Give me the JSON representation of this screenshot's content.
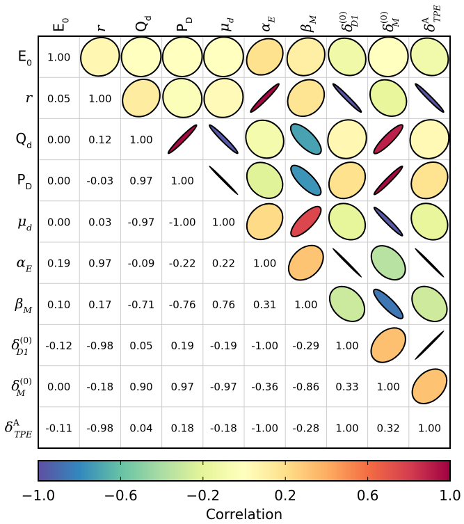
{
  "chart_data": {
    "type": "heatmap",
    "title": "",
    "variables": [
      {
        "base": "E",
        "sub": "0",
        "sup": "",
        "style": "sans"
      },
      {
        "base": "r",
        "sub": "",
        "sup": "",
        "style": "math"
      },
      {
        "base": "Q",
        "sub": "d",
        "sup": "",
        "style": "sans"
      },
      {
        "base": "P",
        "sub": "D",
        "sup": "",
        "style": "sans"
      },
      {
        "base": "μ",
        "sub": "d",
        "sup": "",
        "style": "math"
      },
      {
        "base": "α",
        "sub": "E",
        "sup": "",
        "style": "math"
      },
      {
        "base": "β",
        "sub": "M",
        "sup": "",
        "style": "math"
      },
      {
        "base": "δ",
        "sub": "D1",
        "sup": "(0)",
        "style": "math"
      },
      {
        "base": "δ",
        "sub": "M",
        "sup": "(0)",
        "style": "math"
      },
      {
        "base": "δ",
        "sub": "TPE",
        "sup": "A",
        "style": "math"
      }
    ],
    "matrix": [
      [
        1.0,
        0.05,
        0.0,
        0.0,
        -0.0,
        0.19,
        0.1,
        -0.12,
        0.0,
        -0.11
      ],
      [
        0.05,
        1.0,
        0.12,
        -0.03,
        0.03,
        0.97,
        0.17,
        -0.98,
        -0.18,
        -0.98
      ],
      [
        0.0,
        0.12,
        1.0,
        0.97,
        -0.97,
        -0.09,
        -0.71,
        0.05,
        0.9,
        0.04
      ],
      [
        0.0,
        -0.03,
        0.97,
        1.0,
        -1.0,
        -0.22,
        -0.76,
        0.19,
        0.97,
        0.18
      ],
      [
        -0.0,
        0.03,
        -0.97,
        -1.0,
        1.0,
        0.22,
        0.76,
        -0.19,
        -0.97,
        -0.18
      ],
      [
        0.19,
        0.97,
        -0.09,
        -0.22,
        0.22,
        1.0,
        0.31,
        -1.0,
        -0.36,
        -1.0
      ],
      [
        0.1,
        0.17,
        -0.71,
        -0.76,
        0.76,
        0.31,
        1.0,
        -0.29,
        -0.86,
        -0.28
      ],
      [
        -0.12,
        -0.98,
        0.05,
        0.19,
        -0.19,
        -1.0,
        -0.29,
        1.0,
        0.33,
        1.0
      ],
      [
        0.0,
        -0.18,
        0.9,
        0.97,
        -0.97,
        -0.36,
        -0.86,
        0.33,
        1.0,
        0.32
      ],
      [
        -0.11,
        -0.98,
        0.04,
        0.18,
        -0.18,
        -1.0,
        -0.28,
        1.0,
        0.32,
        1.0
      ]
    ],
    "lower_triangle": "numeric values",
    "upper_triangle": "ellipses colored by correlation",
    "colormap": "Spectral_r",
    "colorbar": {
      "label": "Correlation",
      "range": [
        -1.0,
        1.0
      ],
      "ticks": [
        "−1.0",
        "−0.6",
        "−0.2",
        "0.2",
        "0.6",
        "1.0"
      ],
      "tick_values": [
        -1.0,
        -0.6,
        -0.2,
        0.2,
        0.6,
        1.0
      ],
      "placement": "bottom"
    },
    "grid": true
  },
  "colormap_stops": [
    [
      0.0,
      "#5e4fa2"
    ],
    [
      0.1,
      "#3288bd"
    ],
    [
      0.2,
      "#66c2a5"
    ],
    [
      0.3,
      "#abdda4"
    ],
    [
      0.4,
      "#e6f598"
    ],
    [
      0.5,
      "#ffffbf"
    ],
    [
      0.6,
      "#fee08b"
    ],
    [
      0.7,
      "#fdae61"
    ],
    [
      0.8,
      "#f46d43"
    ],
    [
      0.9,
      "#d53e4f"
    ],
    [
      1.0,
      "#9e0142"
    ]
  ]
}
